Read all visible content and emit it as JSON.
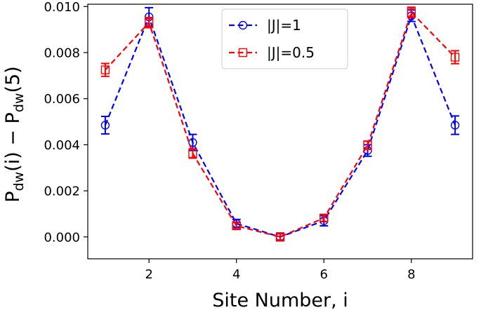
{
  "chart_data": {
    "type": "line",
    "xlabel": "Site Number, i",
    "ylabel": {
      "text": "P(i) − P(5)",
      "parts": [
        {
          "t": "P",
          "sub": false
        },
        {
          "t": "dw",
          "sub": true
        },
        {
          "t": "(i) − P",
          "sub": false
        },
        {
          "t": "dw",
          "sub": true
        },
        {
          "t": "(5)",
          "sub": false
        }
      ]
    },
    "xlim": [
      0.6,
      9.4
    ],
    "ylim": [
      -0.00095,
      0.0101
    ],
    "xticks": [
      2,
      4,
      6,
      8
    ],
    "xtick_labels": [
      "2",
      "4",
      "6",
      "8"
    ],
    "yticks": [
      0,
      0.002,
      0.004,
      0.006,
      0.008,
      0.01
    ],
    "ytick_labels": [
      "0.000",
      "0.002",
      "0.004",
      "0.006",
      "0.008",
      "0.010"
    ],
    "grid": false,
    "legend_position": "top-center",
    "x": [
      1,
      2,
      3,
      4,
      5,
      6,
      7,
      8,
      9
    ],
    "series": [
      {
        "name": "|J|=1",
        "color": "#0000ff",
        "marker": "circle",
        "values": [
          0.00485,
          0.00955,
          0.0041,
          0.00058,
          0.0,
          0.0007,
          0.00375,
          0.0096,
          0.00485
        ],
        "errors": [
          0.00038,
          0.0004,
          0.00035,
          0.00018,
          0.00017,
          0.00022,
          0.00025,
          0.00025,
          0.0004
        ]
      },
      {
        "name": "|J|=0.5",
        "color": "#ff0000",
        "marker": "square",
        "values": [
          0.00725,
          0.0093,
          0.00362,
          0.00048,
          0.0,
          0.00082,
          0.00398,
          0.00975,
          0.0078
        ],
        "errors": [
          0.00028,
          0.00022,
          0.0002,
          0.00015,
          0.00013,
          0.00015,
          0.00018,
          0.00022,
          0.00028
        ]
      }
    ]
  }
}
